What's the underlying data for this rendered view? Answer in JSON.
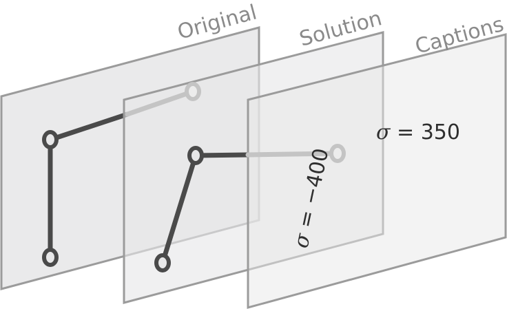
{
  "layers": {
    "original": {
      "label": "Original"
    },
    "solution": {
      "label": "Solution"
    },
    "captions": {
      "label": "Captions"
    }
  },
  "captions": {
    "horizontal": {
      "symbol": "σ",
      "rest": " = 350"
    },
    "rotated": {
      "symbol": "σ",
      "rest": " = −400"
    }
  },
  "colors": {
    "panel_fill": "#e7e7e8",
    "panel_stroke": "#9b9b9b",
    "label": "#8a8a8a",
    "joint_dark": "#4a4a4a",
    "joint_faded": "#c4c4c4",
    "caption": "#2e2e2e"
  }
}
